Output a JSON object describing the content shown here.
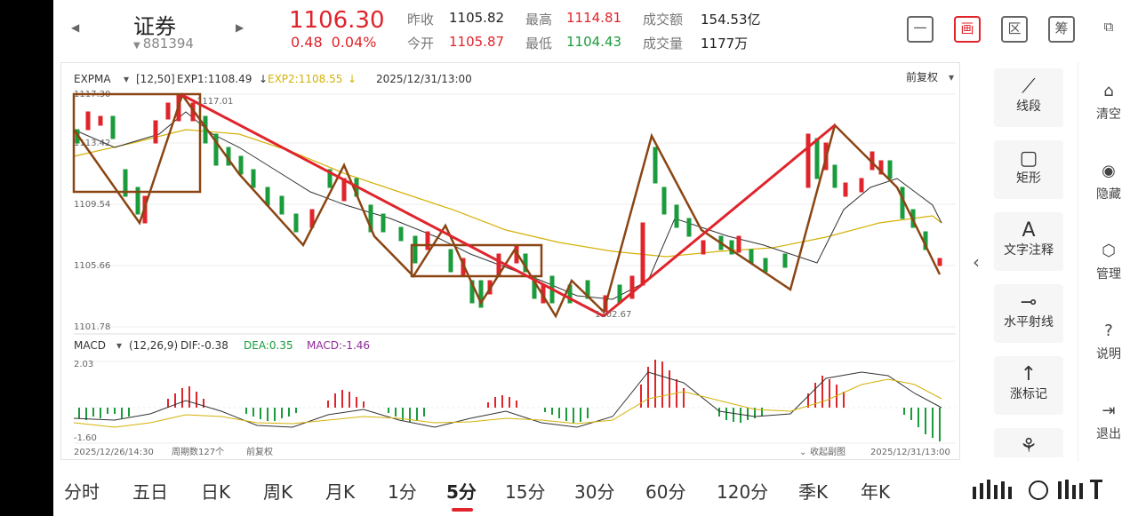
{
  "header": {
    "stock_name": "证券",
    "stock_code": "881394",
    "price": "1106.30",
    "change": "0.48",
    "change_pct": "0.04%",
    "prev_close_label": "昨收",
    "prev_close": "1105.82",
    "open_label": "今开",
    "open": "1105.87",
    "high_label": "最高",
    "high": "1114.81",
    "low_label": "最低",
    "low": "1104.43",
    "amount_label": "成交额",
    "amount": "154.53亿",
    "volume_label": "成交量",
    "volume": "1177万",
    "buttons": [
      "一",
      "画",
      "区",
      "筹",
      "⧉"
    ]
  },
  "main_indicator": {
    "name": "EXPMA",
    "params": "[12,50]",
    "exp1": "EXP1:1108.49",
    "exp2": "EXP2:1108.55",
    "datetime": "2025/12/31/13:00",
    "adjust": "前复权",
    "y_ticks": [
      "1117.30",
      "1113.42",
      "1109.54",
      "1105.66",
      "1101.78"
    ],
    "high_mark": "1117.01",
    "low_mark": "1102.67"
  },
  "sub_indicator": {
    "name": "MACD",
    "params": "(12,26,9)",
    "dif": "DIF:-0.38",
    "dea": "DEA:0.35",
    "macd": "MACD:-1.46",
    "y_top": "2.03",
    "y_bottom": "-1.60"
  },
  "footer": {
    "start": "2025/12/26/14:30",
    "periods": "周期数127个",
    "adjust": "前复权",
    "collapse": "收起副图",
    "end": "2025/12/31/13:00"
  },
  "draw_tools": [
    "线段",
    "矩形",
    "文字注释",
    "水平射线",
    "涨标记"
  ],
  "right_menu": [
    "清空",
    "隐藏",
    "管理",
    "说明",
    "退出"
  ],
  "period_tabs": [
    "分时",
    "五日",
    "日K",
    "周K",
    "月K",
    "1分",
    "5分",
    "15分",
    "30分",
    "60分",
    "120分",
    "季K",
    "年K"
  ],
  "active_period": "5分",
  "colors": {
    "up": "#e0242b",
    "down": "#1a9b3c",
    "exp1": "#333333",
    "exp2": "#d4b106",
    "macd_dea": "#8e2b9b",
    "pattern": "#8b4513",
    "trend": "#e0242b"
  },
  "chart_data": {
    "type": "candlestick",
    "y_range": [
      1101.78,
      1117.3
    ],
    "trendlines": [
      {
        "color": "trend",
        "from": [
          "2025/12/26",
          1117.0
        ],
        "to": [
          "2025/12/30",
          1102.7
        ]
      },
      {
        "color": "trend",
        "from": [
          "2025/12/30",
          1102.7
        ],
        "to": [
          "2025/12/31",
          1114.3
        ]
      }
    ]
  }
}
